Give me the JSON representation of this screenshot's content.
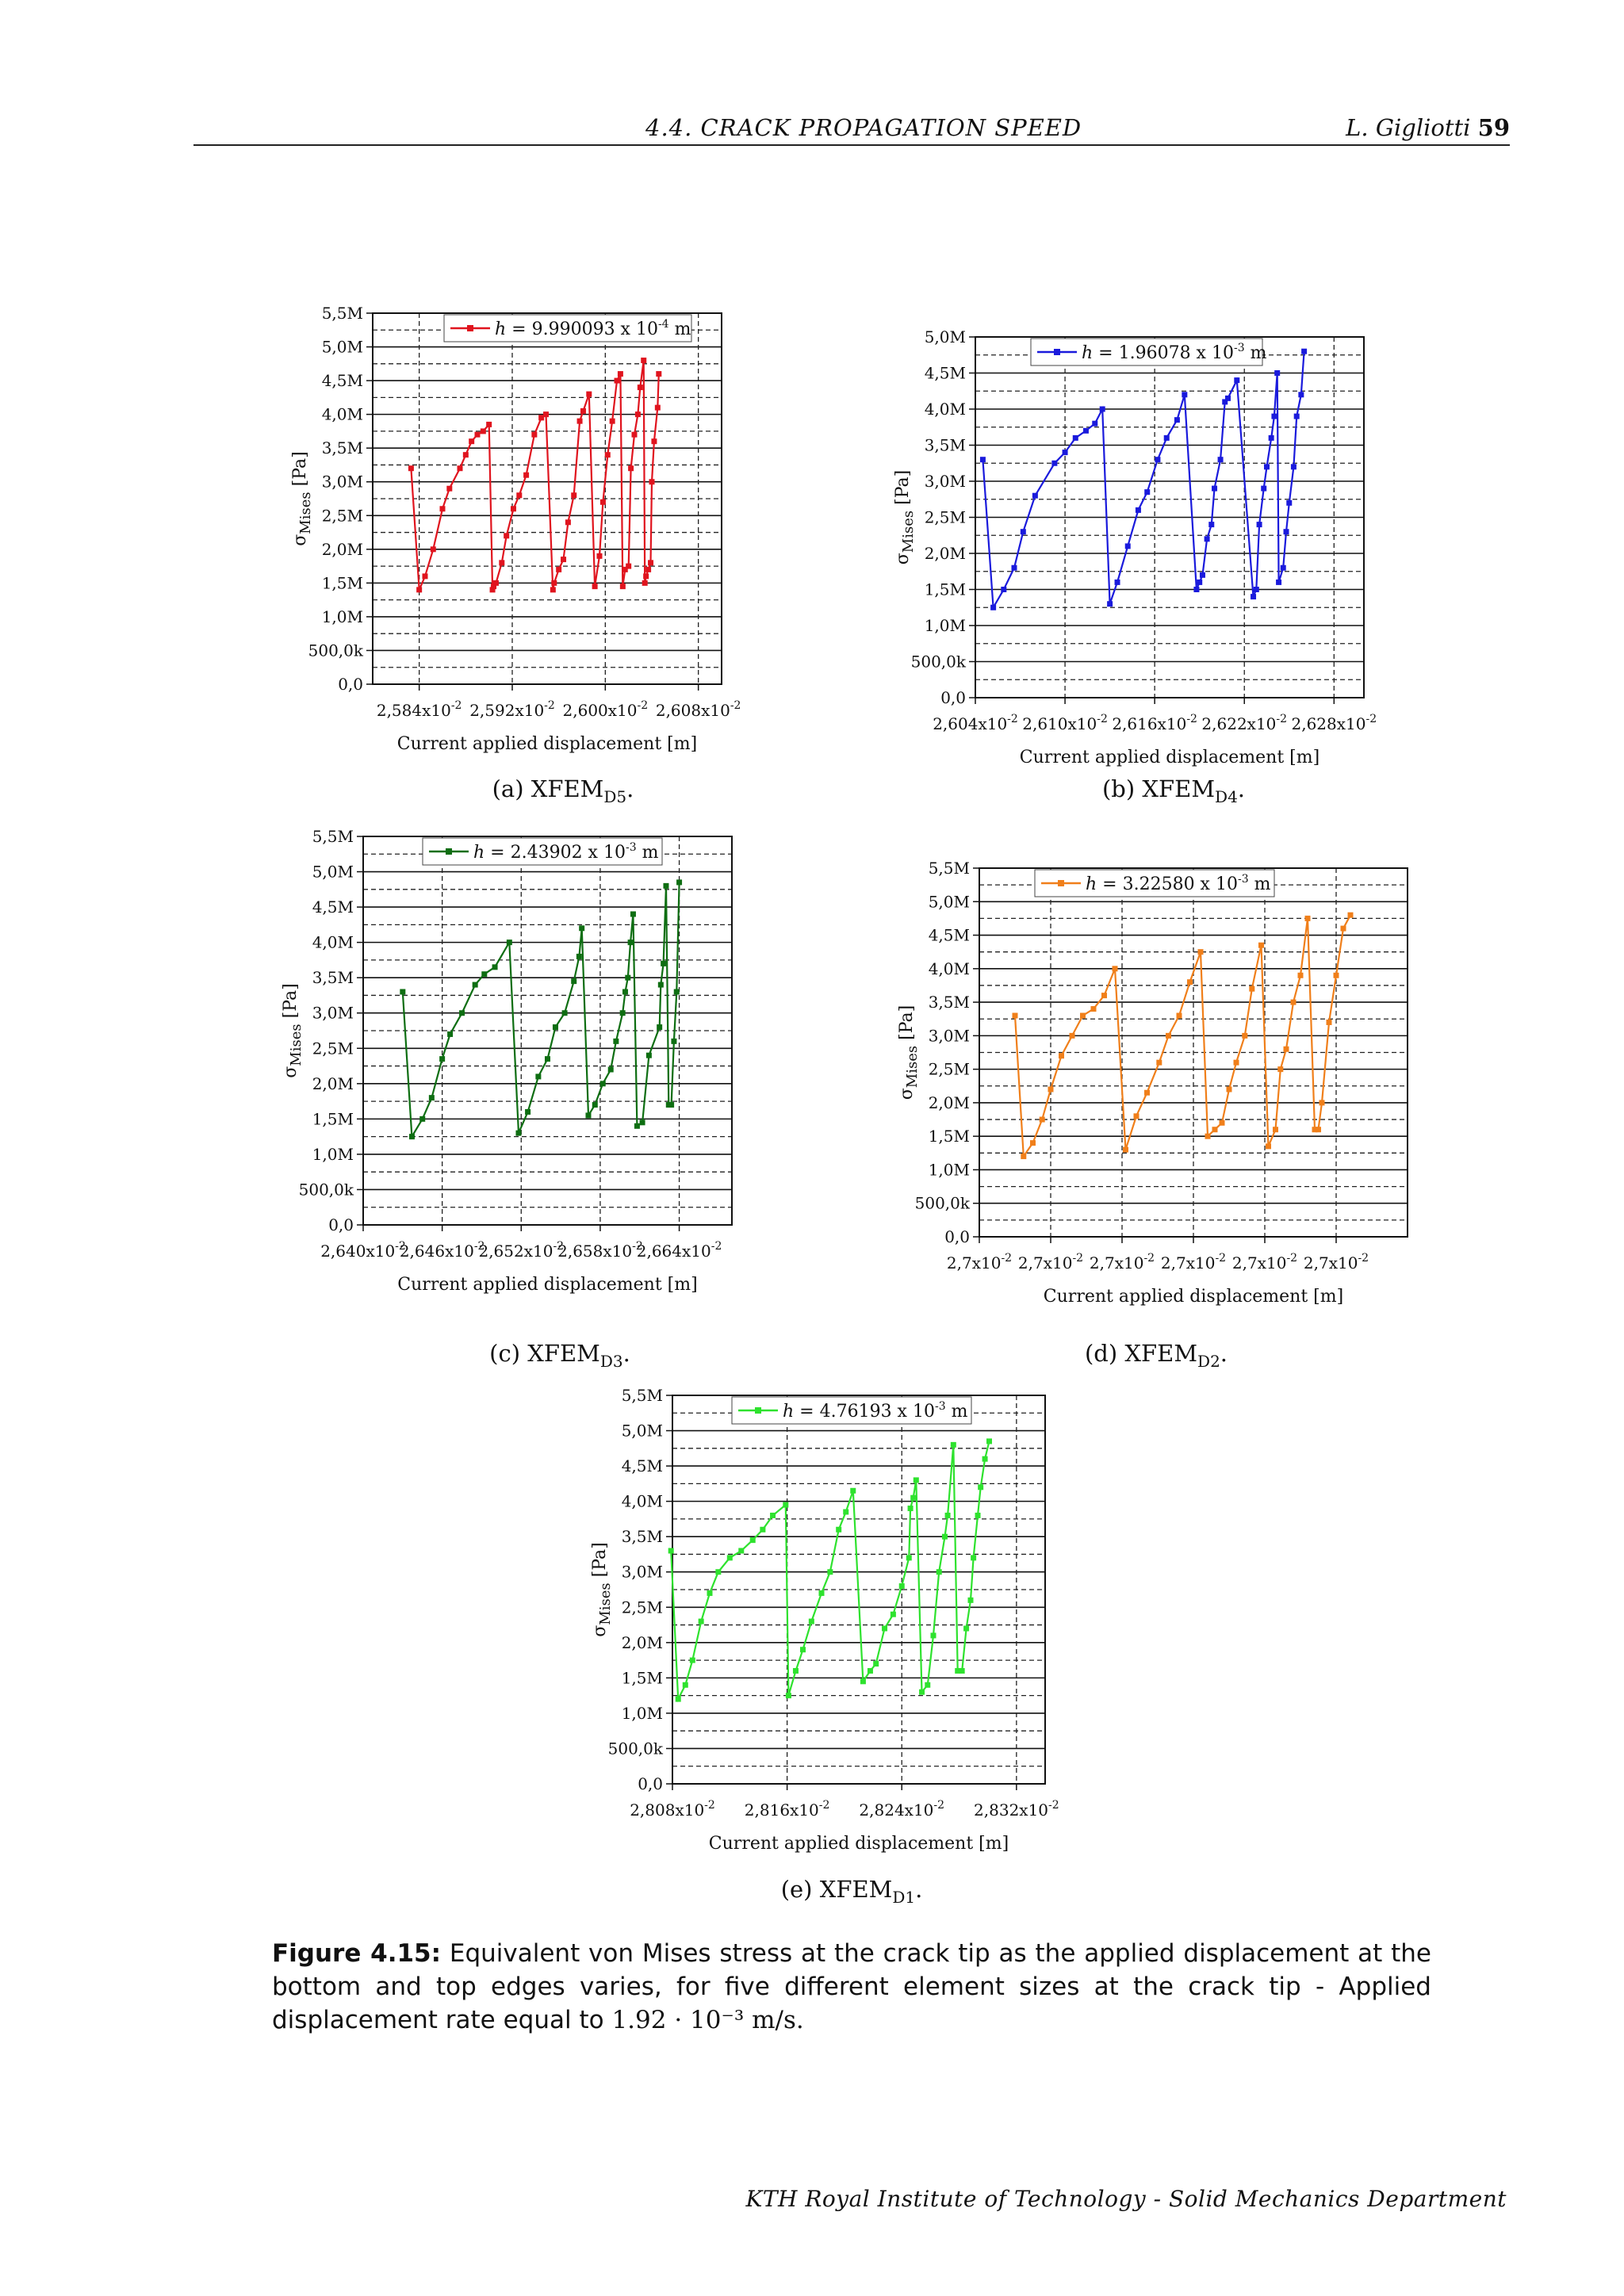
{
  "header": {
    "section": "4.4.  CRACK PROPAGATION SPEED",
    "author": "L. Gigliotti",
    "page": "59"
  },
  "chart_data": [
    {
      "type": "line",
      "panel": "a",
      "caption": "(a) XFEM",
      "caption_sub": "D5",
      "legend": "h = 9.990093 x 10⁻⁴ m",
      "color": "#e0141e",
      "xlabel": "Current applied displacement [m]",
      "ylabel": "σMises [Pa]",
      "xlim": [
        2.58,
        2.61
      ],
      "ylim": [
        0,
        5.5
      ],
      "yticks": [
        "0,0",
        "500,0k",
        "1,0M",
        "1,5M",
        "2,0M",
        "2,5M",
        "3,0M",
        "3,5M",
        "4,0M",
        "4,5M",
        "5,0M",
        "5,5M"
      ],
      "xticks": [
        {
          "v": 2.584,
          "t": "2,584x10⁻²"
        },
        {
          "v": 2.592,
          "t": "2,592x10⁻²"
        },
        {
          "v": 2.6,
          "t": "2,600x10⁻²"
        },
        {
          "v": 2.608,
          "t": "2,608x10⁻²"
        }
      ],
      "x": [
        2.5833,
        2.584,
        2.5845,
        2.5852,
        2.586,
        2.5866,
        2.5875,
        2.588,
        2.5885,
        2.589,
        2.5895,
        2.59,
        2.5903,
        2.5904,
        2.5906,
        2.5911,
        2.5915,
        2.5921,
        2.5926,
        2.5932,
        2.5939,
        2.5945,
        2.5949,
        2.5955,
        2.5956,
        2.596,
        2.5964,
        2.5968,
        2.5973,
        2.5978,
        2.5981,
        2.5986,
        2.5991,
        2.5995,
        2.5998,
        2.6002,
        2.6006,
        2.601,
        2.6013,
        2.6015,
        2.6017,
        2.602,
        2.6022,
        2.6025,
        2.6028,
        2.603,
        2.6033,
        2.6034,
        2.6035,
        2.6037,
        2.6039,
        2.604,
        2.6042,
        2.6045,
        2.6046
      ],
      "y": [
        3.2,
        1.4,
        1.6,
        2.0,
        2.6,
        2.9,
        3.2,
        3.4,
        3.6,
        3.7,
        3.75,
        3.85,
        1.4,
        1.45,
        1.5,
        1.8,
        2.2,
        2.6,
        2.8,
        3.1,
        3.7,
        3.95,
        4.0,
        1.4,
        1.5,
        1.7,
        1.85,
        2.4,
        2.8,
        3.9,
        4.05,
        4.3,
        1.45,
        1.9,
        2.7,
        3.4,
        3.9,
        4.5,
        4.6,
        1.45,
        1.7,
        1.75,
        3.2,
        3.7,
        4.0,
        4.4,
        4.8,
        1.5,
        1.6,
        1.7,
        1.8,
        3.0,
        3.6,
        4.1,
        4.6
      ]
    },
    {
      "type": "line",
      "panel": "b",
      "caption": "(b) XFEM",
      "caption_sub": "D4",
      "legend": "h = 1.96078 x 10⁻³ m",
      "color": "#1a1adc",
      "xlabel": "Current applied displacement [m]",
      "ylabel": "σMises [Pa]",
      "xlim": [
        2.604,
        2.63
      ],
      "ylim": [
        0,
        5.0
      ],
      "yticks": [
        "0,0",
        "500,0k",
        "1,0M",
        "1,5M",
        "2,0M",
        "2,5M",
        "3,0M",
        "3,5M",
        "4,0M",
        "4,5M",
        "5,0M"
      ],
      "xticks": [
        {
          "v": 2.604,
          "t": "2,604x10⁻²"
        },
        {
          "v": 2.61,
          "t": "2,610x10⁻²"
        },
        {
          "v": 2.616,
          "t": "2,616x10⁻²"
        },
        {
          "v": 2.622,
          "t": "2,622x10⁻²"
        },
        {
          "v": 2.628,
          "t": "2,628x10⁻²"
        }
      ],
      "x": [
        2.6045,
        2.6052,
        2.6059,
        2.6066,
        2.6072,
        2.608,
        2.6093,
        2.61,
        2.6107,
        2.6114,
        2.612,
        2.6125,
        2.613,
        2.6135,
        2.6142,
        2.6149,
        2.6155,
        2.6162,
        2.6168,
        2.6175,
        2.618,
        2.6188,
        2.619,
        2.6192,
        2.6195,
        2.6198,
        2.62,
        2.6204,
        2.6207,
        2.6209,
        2.6215,
        2.6226,
        2.6228,
        2.623,
        2.6233,
        2.6235,
        2.6238,
        2.624,
        2.6242,
        2.6243,
        2.6246,
        2.6248,
        2.625,
        2.6253,
        2.6255,
        2.6258,
        2.626
      ],
      "y": [
        3.3,
        1.25,
        1.5,
        1.8,
        2.3,
        2.8,
        3.25,
        3.4,
        3.6,
        3.7,
        3.8,
        4.0,
        1.3,
        1.6,
        2.1,
        2.6,
        2.85,
        3.3,
        3.6,
        3.85,
        4.2,
        1.5,
        1.6,
        1.7,
        2.2,
        2.4,
        2.9,
        3.3,
        4.1,
        4.15,
        4.4,
        1.4,
        1.5,
        2.4,
        2.9,
        3.2,
        3.6,
        3.9,
        4.5,
        1.6,
        1.8,
        2.3,
        2.7,
        3.2,
        3.9,
        4.2,
        4.8
      ]
    },
    {
      "type": "line",
      "panel": "c",
      "caption": "(c) XFEM",
      "caption_sub": "D3",
      "legend": "h = 2.43902 x 10⁻³ m",
      "color": "#0e6e12",
      "xlabel": "Current applied displacement [m]",
      "ylabel": "σMises [Pa]",
      "xlim": [
        2.64,
        2.668
      ],
      "ylim": [
        0,
        5.5
      ],
      "yticks": [
        "0,0",
        "500,0k",
        "1,0M",
        "1,5M",
        "2,0M",
        "2,5M",
        "3,0M",
        "3,5M",
        "4,0M",
        "4,5M",
        "5,0M",
        "5,5M"
      ],
      "xticks": [
        {
          "v": 2.64,
          "t": "2,640x10⁻²"
        },
        {
          "v": 2.646,
          "t": "2,646x10⁻²"
        },
        {
          "v": 2.652,
          "t": "2,652x10⁻²"
        },
        {
          "v": 2.658,
          "t": "2,658x10⁻²"
        },
        {
          "v": 2.664,
          "t": "2,664x10⁻²"
        }
      ],
      "x": [
        2.643,
        2.6437,
        2.6445,
        2.6452,
        2.646,
        2.6466,
        2.6475,
        2.6485,
        2.6492,
        2.65,
        2.6511,
        2.6518,
        2.6525,
        2.6533,
        2.654,
        2.6546,
        2.6553,
        2.656,
        2.6564,
        2.6566,
        2.6571,
        2.6576,
        2.6582,
        2.6588,
        2.6592,
        2.6597,
        2.6599,
        2.6601,
        2.6603,
        2.6605,
        2.6608,
        2.6612,
        2.6617,
        2.6625,
        2.6626,
        2.6628,
        2.663,
        2.6632,
        2.6634,
        2.6636,
        2.6638,
        2.664
      ],
      "y": [
        3.3,
        1.25,
        1.5,
        1.8,
        2.35,
        2.7,
        3.0,
        3.4,
        3.55,
        3.65,
        4.0,
        1.3,
        1.6,
        2.1,
        2.35,
        2.8,
        3.0,
        3.45,
        3.8,
        4.2,
        1.55,
        1.7,
        2.0,
        2.2,
        2.6,
        3.0,
        3.3,
        3.5,
        4.0,
        4.4,
        1.4,
        1.45,
        2.4,
        2.8,
        3.4,
        3.7,
        4.8,
        1.7,
        1.7,
        2.6,
        3.3,
        4.85
      ]
    },
    {
      "type": "line",
      "panel": "d",
      "caption": "(d) XFEM",
      "caption_sub": "D2",
      "legend": "h = 3.22580 x 10⁻³ m",
      "color": "#f07f1a",
      "xlabel": "Current applied displacement [m]",
      "ylabel": "σMises [Pa]",
      "xlim": [
        0,
        6
      ],
      "ylim": [
        0,
        5.5
      ],
      "yticks": [
        "0,0",
        "500,0k",
        "1,0M",
        "1,5M",
        "2,0M",
        "2,5M",
        "3,0M",
        "3,5M",
        "4,0M",
        "4,5M",
        "5,0M",
        "5,5M"
      ],
      "xticks": [
        {
          "v": 0,
          "t": "2,7x10⁻²"
        },
        {
          "v": 1,
          "t": "2,7x10⁻²"
        },
        {
          "v": 2,
          "t": "2,7x10⁻²"
        },
        {
          "v": 3,
          "t": "2,7x10⁻²"
        },
        {
          "v": 4,
          "t": "2,7x10⁻²"
        },
        {
          "v": 5,
          "t": "2,7x10⁻²"
        }
      ],
      "x": [
        0.5,
        0.62,
        0.75,
        0.88,
        1.0,
        1.15,
        1.3,
        1.45,
        1.6,
        1.75,
        1.9,
        2.05,
        2.2,
        2.35,
        2.52,
        2.65,
        2.8,
        2.95,
        3.1,
        3.2,
        3.3,
        3.4,
        3.5,
        3.6,
        3.72,
        3.82,
        3.95,
        4.05,
        4.15,
        4.22,
        4.3,
        4.4,
        4.5,
        4.6,
        4.7,
        4.75,
        4.8,
        4.9,
        5.0,
        5.1,
        5.2
      ],
      "y": [
        3.3,
        1.2,
        1.4,
        1.75,
        2.2,
        2.7,
        3.0,
        3.3,
        3.4,
        3.6,
        4.0,
        1.3,
        1.8,
        2.15,
        2.6,
        3.0,
        3.3,
        3.8,
        4.25,
        1.5,
        1.6,
        1.7,
        2.2,
        2.6,
        3.0,
        3.7,
        4.35,
        1.35,
        1.6,
        2.5,
        2.8,
        3.5,
        3.9,
        4.75,
        1.6,
        1.6,
        2.0,
        3.2,
        3.9,
        4.6,
        4.8
      ]
    },
    {
      "type": "line",
      "panel": "e",
      "caption": "(e) XFEM",
      "caption_sub": "D1",
      "legend": "h = 4.76193 x 10⁻³ m",
      "color": "#2ee22e",
      "xlabel": "Current applied displacement [m]",
      "ylabel": "σMises [Pa]",
      "xlim": [
        2.808,
        2.834
      ],
      "ylim": [
        0,
        5.5
      ],
      "yticks": [
        "0,0",
        "500,0k",
        "1,0M",
        "1,5M",
        "2,0M",
        "2,5M",
        "3,0M",
        "3,5M",
        "4,0M",
        "4,5M",
        "5,0M",
        "5,5M"
      ],
      "xticks": [
        {
          "v": 2.808,
          "t": "2,808x10⁻²"
        },
        {
          "v": 2.816,
          "t": "2,816x10⁻²"
        },
        {
          "v": 2.824,
          "t": "2,824x10⁻²"
        },
        {
          "v": 2.832,
          "t": "2,832x10⁻²"
        }
      ],
      "x": [
        2.8079,
        2.8084,
        2.8089,
        2.8094,
        2.81,
        2.8106,
        2.8112,
        2.812,
        2.8128,
        2.8136,
        2.8143,
        2.815,
        2.8159,
        2.8161,
        2.8166,
        2.8171,
        2.8177,
        2.8184,
        2.819,
        2.8196,
        2.8201,
        2.8206,
        2.8213,
        2.8218,
        2.8222,
        2.8228,
        2.8234,
        2.824,
        2.8245,
        2.8246,
        2.8248,
        2.825,
        2.8254,
        2.8258,
        2.8262,
        2.8266,
        2.827,
        2.8272,
        2.8276,
        2.8279,
        2.8282,
        2.8285,
        2.8288,
        2.829,
        2.8293,
        2.8295,
        2.8298,
        2.8301
      ],
      "y": [
        3.3,
        1.2,
        1.4,
        1.75,
        2.3,
        2.7,
        3.0,
        3.2,
        3.3,
        3.45,
        3.6,
        3.8,
        3.95,
        1.25,
        1.6,
        1.9,
        2.3,
        2.7,
        3.0,
        3.6,
        3.85,
        4.15,
        1.45,
        1.6,
        1.7,
        2.2,
        2.4,
        2.8,
        3.2,
        3.9,
        4.05,
        4.3,
        1.3,
        1.4,
        2.1,
        3.0,
        3.5,
        3.8,
        4.8,
        1.6,
        1.6,
        2.2,
        2.6,
        3.2,
        3.8,
        4.2,
        4.6,
        4.85
      ]
    }
  ],
  "figure_caption": {
    "label": "Figure 4.15:",
    "text": "Equivalent von Mises stress at the crack tip as the applied displacement at the bottom and top edges varies, for five different element sizes at the crack tip - Applied displacement rate equal to",
    "math": "1.92 · 10⁻³ m/s."
  },
  "footer": "KTH Royal Institute of Technology - Solid Mechanics Department"
}
